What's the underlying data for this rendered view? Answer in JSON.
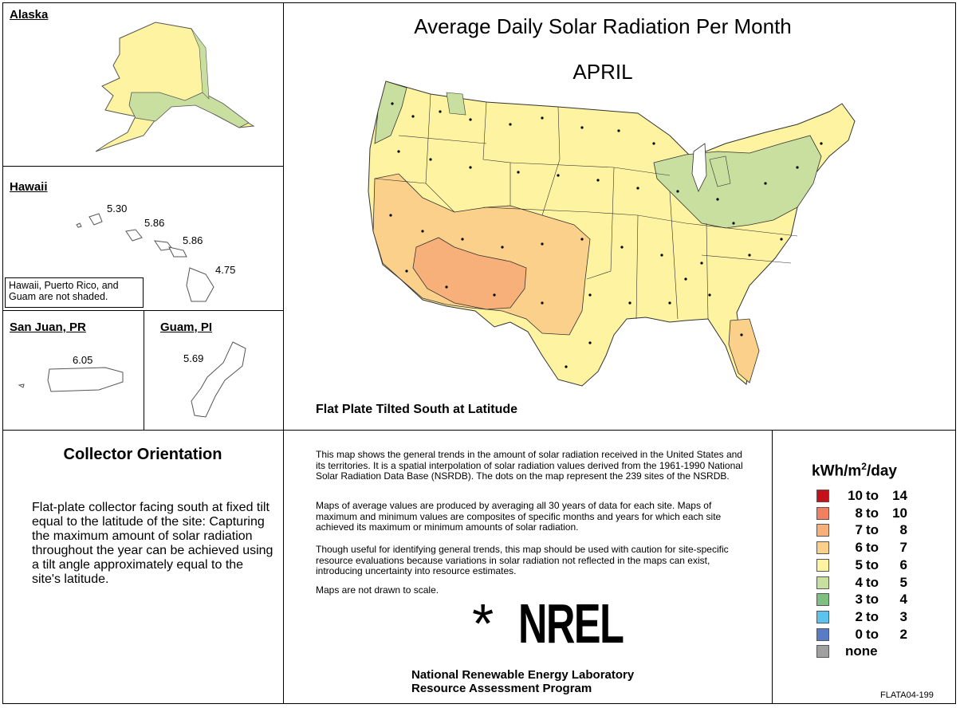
{
  "title": "Average Daily Solar Radiation Per Month",
  "month": "APRIL",
  "collector_label": "Flat Plate Tilted South at Latitude",
  "insets": {
    "alaska": {
      "title": "Alaska"
    },
    "hawaii": {
      "title": "Hawaii",
      "values": [
        "5.30",
        "5.86",
        "5.86",
        "4.75"
      ]
    },
    "note": "Hawaii, Puerto Rico, and Guam are not shaded.",
    "san_juan": {
      "title": "San Juan, PR",
      "value": "6.05"
    },
    "guam": {
      "title": "Guam, PI",
      "value": "5.69"
    }
  },
  "orientation": {
    "title": "Collector Orientation",
    "description": "Flat-plate collector facing south at fixed tilt equal to the latitude of the site:  Capturing the maximum amount of solar radiation throughout the year can be achieved using a tilt angle approximately equal to the site's latitude."
  },
  "description": {
    "p1": "This map shows the general trends in the amount of solar radiation received in the United States and its territories.  It is a spatial interpolation of solar radiation values derived from the 1961-1990 National Solar Radiation Data Base (NSRDB).  The dots on the map represent the 239 sites of the NSRDB.",
    "p2": "Maps of average values are produced by averaging all 30 years of data for each site. Maps of maximum and minimum values are composites of specific months and years for which each site achieved its maximum or minimum amounts of solar radiation.",
    "p3": "Though useful for identifying general trends, this map should be used with caution for site-specific resource evaluations because variations in solar radiation not reflected in the maps can exist, introducing uncertainty into resource estimates.",
    "p4": "Maps are not drawn to scale."
  },
  "logo": {
    "star": "*",
    "text": "NREL"
  },
  "lab": {
    "line1": "National Renewable Energy Laboratory",
    "line2": "Resource Assessment Program"
  },
  "code": "FLATA04-199",
  "legend": {
    "unit_main": "kWh/m",
    "unit_sup": "2",
    "unit_tail": "/day",
    "to_word": "to",
    "items": [
      {
        "lo": "10",
        "hi": "14",
        "color": "#c8101a"
      },
      {
        "lo": "8",
        "hi": "10",
        "color": "#f08060"
      },
      {
        "lo": "7",
        "hi": "8",
        "color": "#f7b07a"
      },
      {
        "lo": "6",
        "hi": "7",
        "color": "#fbd08a"
      },
      {
        "lo": "5",
        "hi": "6",
        "color": "#fdf3a0"
      },
      {
        "lo": "4",
        "hi": "5",
        "color": "#c8dfa0"
      },
      {
        "lo": "3",
        "hi": "4",
        "color": "#7fbf80"
      },
      {
        "lo": "2",
        "hi": "3",
        "color": "#5ac4ec"
      },
      {
        "lo": "0",
        "hi": "2",
        "color": "#5a7cc8"
      }
    ],
    "none_label": "none",
    "none_color": "#a0a0a0"
  }
}
